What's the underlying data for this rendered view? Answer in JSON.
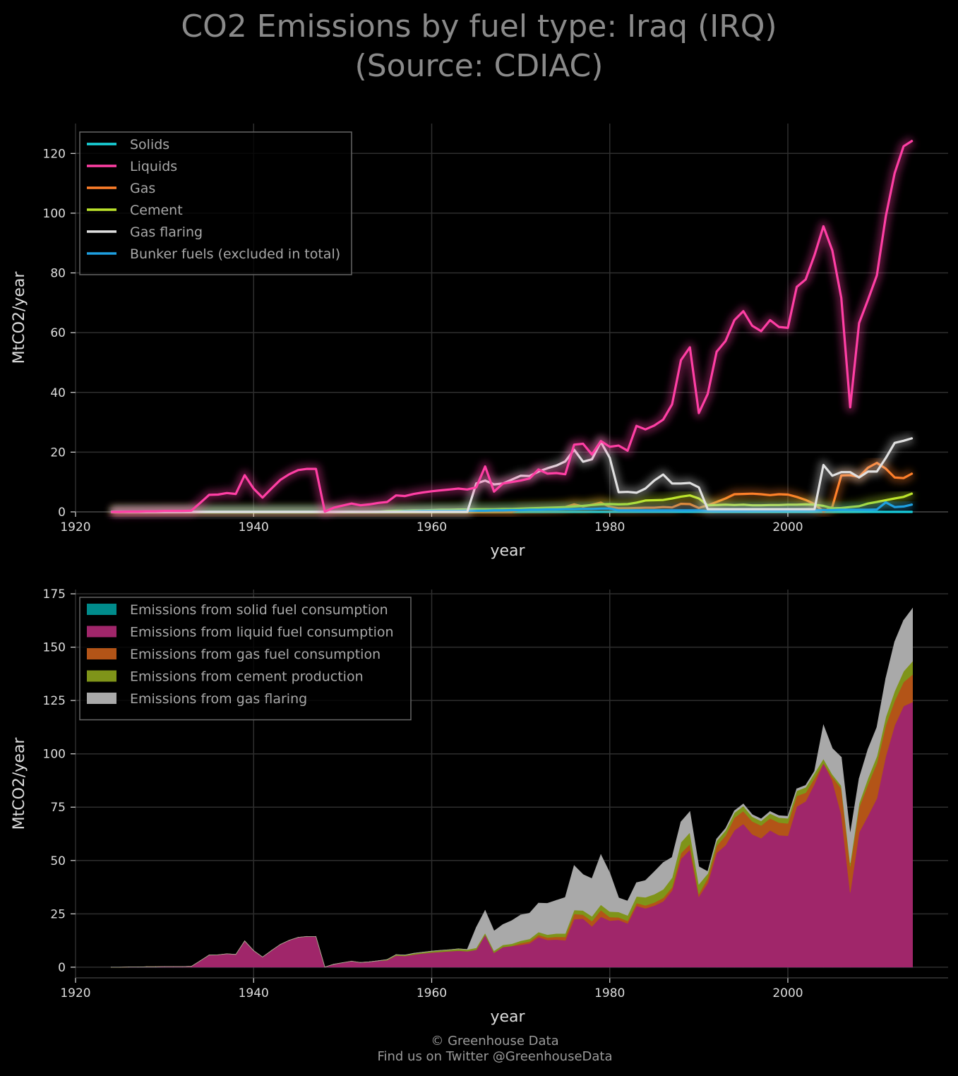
{
  "title_line1": "CO2 Emissions by fuel type: Iraq (IRQ)",
  "title_line2": "(Source: CDIAC)",
  "credit_line1": "© Greenhouse Data",
  "credit_line2": "Find us on Twitter @GreenhouseData",
  "colors": {
    "background": "#000000",
    "grid": "#2e2e2e",
    "tick_text": "#dddddd",
    "solids": "#19d3da",
    "liquids": "#ff3fa4",
    "gas": "#ff7f2a",
    "cement": "#bde52b",
    "flaring": "#e0e0e0",
    "bunker": "#1e9fe0",
    "area_solid": "#008b8b",
    "area_liquid": "#a0266a",
    "area_gas": "#b35417",
    "area_cement": "#7f9419",
    "area_flaring": "#a9a9a9"
  },
  "chart_data": [
    {
      "type": "line",
      "xlabel": "year",
      "ylabel": "MtCO2/year",
      "xlim": [
        1920,
        2018
      ],
      "ylim": [
        0,
        130
      ],
      "xticks": [
        1920,
        1940,
        1960,
        1980,
        2000
      ],
      "yticks": [
        0,
        20,
        40,
        60,
        80,
        100,
        120
      ],
      "grid": true,
      "legend_position": "top-left",
      "x": [
        1924,
        1925,
        1926,
        1927,
        1928,
        1929,
        1930,
        1931,
        1932,
        1933,
        1934,
        1935,
        1936,
        1937,
        1938,
        1939,
        1940,
        1941,
        1942,
        1943,
        1944,
        1945,
        1946,
        1947,
        1948,
        1949,
        1950,
        1951,
        1952,
        1953,
        1954,
        1955,
        1956,
        1957,
        1958,
        1959,
        1960,
        1961,
        1962,
        1963,
        1964,
        1965,
        1966,
        1967,
        1968,
        1969,
        1970,
        1971,
        1972,
        1973,
        1974,
        1975,
        1976,
        1977,
        1978,
        1979,
        1980,
        1981,
        1982,
        1983,
        1984,
        1985,
        1986,
        1987,
        1988,
        1989,
        1990,
        1991,
        1992,
        1993,
        1994,
        1995,
        1996,
        1997,
        1998,
        1999,
        2000,
        2001,
        2002,
        2003,
        2004,
        2005,
        2006,
        2007,
        2008,
        2009,
        2010,
        2011,
        2012,
        2013,
        2014
      ],
      "series": [
        {
          "name": "Solids",
          "key": "solids",
          "values": [
            0,
            0,
            0,
            0,
            0,
            0,
            0,
            0,
            0,
            0,
            0,
            0,
            0,
            0,
            0,
            0,
            0,
            0,
            0,
            0,
            0,
            0,
            0,
            0,
            0,
            0,
            0,
            0,
            0,
            0,
            0,
            0,
            0,
            0,
            0,
            0,
            0,
            0,
            0,
            0,
            0,
            0,
            0,
            0,
            0,
            0,
            0,
            0,
            0,
            0,
            0,
            0,
            0,
            0,
            0,
            0,
            0,
            0,
            0,
            0,
            0,
            0,
            0,
            0,
            0,
            0,
            0,
            0,
            0,
            0,
            0,
            0,
            0,
            0,
            0,
            0,
            0,
            0,
            0,
            0,
            0,
            0,
            0,
            0,
            0,
            0,
            0,
            0,
            0,
            0,
            0
          ]
        },
        {
          "name": "Liquids",
          "key": "liquids",
          "values": [
            0,
            0,
            0.1,
            0.1,
            0.2,
            0.2,
            0.3,
            0.3,
            0.3,
            0.4,
            3,
            5.7,
            5.8,
            6.3,
            6,
            12.3,
            7.8,
            4.8,
            7.8,
            10.7,
            12.6,
            14,
            14.4,
            14.4,
            0.1,
            1.4,
            2.1,
            2.8,
            2.2,
            2.5,
            3,
            3.3,
            5.5,
            5.3,
            6,
            6.5,
            6.9,
            7.2,
            7.5,
            7.8,
            7.5,
            8.2,
            15.2,
            6.8,
            9.5,
            10,
            10.5,
            11.2,
            14.2,
            12.8,
            13,
            12.6,
            22.5,
            22.8,
            19.2,
            23.7,
            21.8,
            22.2,
            20.5,
            28.8,
            27.6,
            28.9,
            30.9,
            36,
            50.8,
            55.1,
            33.1,
            39.5,
            53.6,
            57.2,
            64.2,
            67.2,
            62.3,
            60.5,
            64.2,
            61.9,
            61.6,
            75.3,
            77.8,
            86,
            95.6,
            87.5,
            71.6,
            35,
            63.2,
            71,
            79.2,
            98.9,
            113.4,
            122.4,
            124.3
          ]
        },
        {
          "name": "Gas",
          "key": "gas",
          "values": [
            0,
            0,
            0,
            0,
            0,
            0,
            0,
            0,
            0,
            0,
            0,
            0,
            0,
            0,
            0,
            0,
            0,
            0,
            0,
            0,
            0,
            0,
            0,
            0,
            0,
            0,
            0,
            0,
            0,
            0,
            0,
            0,
            0,
            0,
            0,
            0,
            0,
            0,
            0,
            0,
            0,
            0,
            0,
            0,
            0,
            0,
            0.8,
            0.9,
            1,
            1.1,
            1.3,
            1.6,
            2.5,
            1.8,
            2.4,
            3.1,
            1.7,
            1.2,
            1.2,
            1.3,
            1.4,
            1.4,
            1.6,
            1.5,
            2.7,
            2.6,
            1.3,
            2.2,
            3.3,
            4.5,
            5.9,
            6,
            6.1,
            5.9,
            5.6,
            5.9,
            5.8,
            5,
            4,
            2.6,
            0.1,
            1.7,
            12.2,
            12.3,
            11.7,
            14.8,
            16.4,
            14.5,
            11.5,
            11.3,
            12.9
          ]
        },
        {
          "name": "Cement",
          "key": "cement",
          "values": [
            0,
            0,
            0,
            0,
            0,
            0,
            0,
            0,
            0,
            0,
            0,
            0,
            0,
            0,
            0,
            0,
            0,
            0,
            0,
            0,
            0,
            0,
            0,
            0,
            0,
            0,
            0,
            0,
            0,
            0,
            0,
            0.3,
            0.4,
            0.4,
            0.5,
            0.5,
            0.6,
            0.7,
            0.7,
            0.8,
            0.8,
            0.9,
            0.9,
            0.9,
            1,
            1,
            1.1,
            1.2,
            1.3,
            1.4,
            1.5,
            1.6,
            1.8,
            2,
            2.3,
            2.5,
            2.6,
            2.5,
            2.6,
            3.1,
            3.8,
            3.9,
            4,
            4.5,
            5.1,
            5.5,
            4.5,
            2.2,
            2.3,
            2.4,
            2.3,
            2.4,
            2.2,
            2.2,
            2.3,
            2.3,
            2.4,
            2.4,
            2.5,
            2.4,
            2,
            1.2,
            1.3,
            1.6,
            1.9,
            2.8,
            3.3,
            3.9,
            4.5,
            5,
            6.2
          ]
        },
        {
          "name": "Gas flaring",
          "key": "flaring",
          "values": [
            0,
            0,
            0,
            0,
            0,
            0,
            0,
            0,
            0,
            0,
            0,
            0,
            0,
            0,
            0,
            0,
            0,
            0,
            0,
            0,
            0,
            0,
            0,
            0,
            0,
            0,
            0,
            0,
            0,
            0,
            0,
            0,
            0,
            0,
            0,
            0,
            0,
            0,
            0,
            0,
            0,
            9.5,
            10.5,
            9.2,
            9.5,
            10.8,
            12.1,
            12,
            13.5,
            14.6,
            15.5,
            16.9,
            20.8,
            16.8,
            17.6,
            23.4,
            18.1,
            6.6,
            6.7,
            6.4,
            7.8,
            10.5,
            12.5,
            9.5,
            9.5,
            9.7,
            8.2,
            0.9,
            0.9,
            0.9,
            0.9,
            0.9,
            0.9,
            0.9,
            0.9,
            0.9,
            0.9,
            0.9,
            0.9,
            0.9,
            15.7,
            12.1,
            13.3,
            13.3,
            11.5,
            13.5,
            13.5,
            18,
            23.1,
            23.8,
            24.7
          ]
        },
        {
          "name": "Bunker fuels (excluded in total)",
          "key": "bunker",
          "values": [
            0,
            0,
            0,
            0,
            0,
            0,
            0,
            0,
            0,
            0,
            0,
            0,
            0,
            0,
            0,
            0,
            0,
            0,
            0,
            0,
            0,
            0,
            0,
            0,
            0,
            0,
            0,
            0,
            0,
            0,
            0,
            0,
            0,
            0.2,
            0.2,
            0.3,
            0.3,
            0.3,
            0.3,
            0.3,
            0.4,
            0.4,
            0.4,
            0.5,
            0.5,
            0.6,
            0.6,
            0.7,
            0.7,
            0.8,
            0.8,
            0.9,
            0.9,
            1,
            1,
            1.1,
            1.1,
            0.5,
            0.5,
            0.5,
            0.5,
            0.5,
            0.5,
            0.5,
            0.5,
            0.5,
            0.5,
            0.3,
            0.3,
            0.3,
            0.3,
            0.3,
            0.4,
            0.4,
            0.4,
            0.4,
            0.5,
            0.5,
            0.5,
            0.5,
            0.6,
            0.6,
            0.7,
            0.7,
            0.7,
            0.7,
            0.8,
            3.2,
            1.6,
            1.8,
            2.5
          ]
        }
      ]
    },
    {
      "type": "area",
      "stacked": true,
      "xlabel": "year",
      "ylabel": "MtCO2/year",
      "xlim": [
        1920,
        2018
      ],
      "ylim": [
        -5,
        177
      ],
      "xticks": [
        1920,
        1940,
        1960,
        1980,
        2000
      ],
      "yticks": [
        0,
        25,
        50,
        75,
        100,
        125,
        150,
        175
      ],
      "grid": true,
      "legend_position": "top-left",
      "series": [
        {
          "name": "Emissions from solid fuel consumption",
          "key": "area_solid",
          "source": "solids"
        },
        {
          "name": "Emissions from liquid fuel consumption",
          "key": "area_liquid",
          "source": "liquids"
        },
        {
          "name": "Emissions from gas fuel consumption",
          "key": "area_gas",
          "source": "gas"
        },
        {
          "name": "Emissions from cement production",
          "key": "area_cement",
          "source": "cement"
        },
        {
          "name": "Emissions from gas flaring",
          "key": "area_flaring",
          "source": "flaring"
        }
      ]
    }
  ]
}
